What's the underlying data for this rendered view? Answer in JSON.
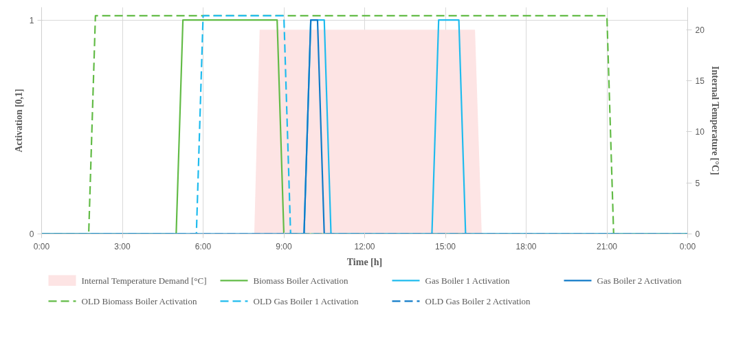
{
  "chart_data": {
    "type": "line",
    "xlabel": "Time [h]",
    "ylabel": "Activation [0,1]",
    "y2label": "Internal Temperature [°C]",
    "xlim": [
      0,
      24
    ],
    "xticks": [
      {
        "value": 0,
        "label": "0:00"
      },
      {
        "value": 3,
        "label": "3:00"
      },
      {
        "value": 6,
        "label": "6:00"
      },
      {
        "value": 9,
        "label": "9:00"
      },
      {
        "value": 12,
        "label": "12:00"
      },
      {
        "value": 15,
        "label": "15:00"
      },
      {
        "value": 18,
        "label": "18:00"
      },
      {
        "value": 21,
        "label": "21:00"
      },
      {
        "value": 24,
        "label": "0:00"
      }
    ],
    "ylim": [
      0,
      1.06
    ],
    "yticks": [
      0,
      1
    ],
    "y2lim": [
      0,
      22.2
    ],
    "y2ticks": [
      0,
      5,
      10,
      15,
      20
    ],
    "grid": true,
    "legend": "bottom",
    "series": [
      {
        "name": "Internal Temperature Demand [°C]",
        "type": "area",
        "axis": "y2",
        "color": "#fde4e4",
        "x": [
          7.9,
          8.1,
          16.1,
          16.35
        ],
        "values": [
          0,
          20,
          20,
          0
        ]
      },
      {
        "name": "Biomass Boiler Activation",
        "color": "#62bb46",
        "line_style": "solid",
        "x": [
          0,
          5,
          5.25,
          8.75,
          9,
          24
        ],
        "values": [
          0,
          0,
          1,
          1,
          0,
          0
        ]
      },
      {
        "name": "Gas Boiler 1 Activation",
        "color": "#1ebbee",
        "line_style": "solid",
        "x": [
          0,
          9.75,
          10,
          10.5,
          10.75,
          14.5,
          14.75,
          15.5,
          15.75,
          24
        ],
        "values": [
          0,
          0,
          1,
          1,
          0,
          0,
          1,
          1,
          0,
          0
        ]
      },
      {
        "name": "Gas Boiler 2 Activation",
        "color": "#0f7ac8",
        "line_style": "solid",
        "x": [
          0,
          9.75,
          10,
          10.25,
          10.5,
          24
        ],
        "values": [
          0,
          0,
          1,
          1,
          0,
          0
        ]
      },
      {
        "name": "OLD Biomass Boiler Activation",
        "color": "#62bb46",
        "line_style": "dashed",
        "x": [
          0,
          1.75,
          2,
          21,
          21.25,
          24
        ],
        "values": [
          0,
          0,
          1.02,
          1.02,
          0,
          0
        ]
      },
      {
        "name": "OLD Gas Boiler 1 Activation",
        "color": "#1ebbee",
        "line_style": "dashed",
        "x": [
          0,
          5.75,
          6,
          9,
          9.25,
          24
        ],
        "values": [
          0,
          0,
          1.02,
          1.02,
          0,
          0
        ]
      },
      {
        "name": "OLD Gas Boiler 2 Activation",
        "color": "#0f7ac8",
        "line_style": "dashed",
        "x": [
          0,
          24
        ],
        "values": [
          0,
          0
        ]
      }
    ]
  }
}
